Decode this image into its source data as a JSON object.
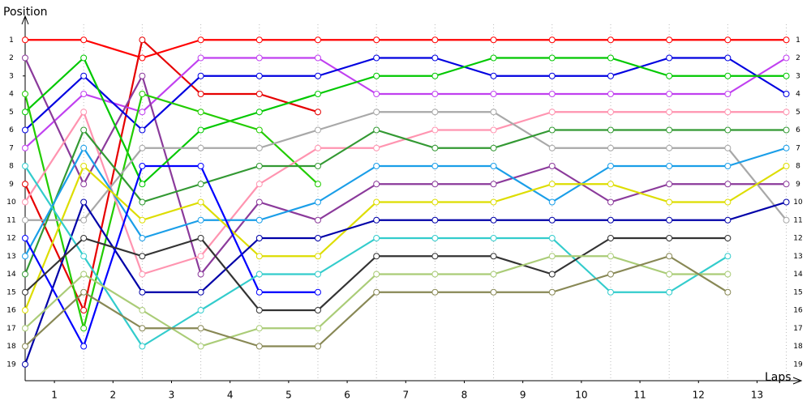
{
  "chart_data": {
    "type": "line",
    "ylabel": "Position",
    "xlabel": "Laps",
    "x": [
      0,
      1,
      2,
      3,
      4,
      5,
      6,
      7,
      8,
      9,
      10,
      11,
      12,
      13
    ],
    "xlim": [
      0,
      13.2
    ],
    "xticks": [
      {
        "value": 0.5,
        "label": "1"
      },
      {
        "value": 1.5,
        "label": "2"
      },
      {
        "value": 2.5,
        "label": "3"
      },
      {
        "value": 3.5,
        "label": "4"
      },
      {
        "value": 4.5,
        "label": "5"
      },
      {
        "value": 5.5,
        "label": "6"
      },
      {
        "value": 6.5,
        "label": "7"
      },
      {
        "value": 7.5,
        "label": "8"
      },
      {
        "value": 8.5,
        "label": "9"
      },
      {
        "value": 9.5,
        "label": "10"
      },
      {
        "value": 10.5,
        "label": "11"
      },
      {
        "value": 11.5,
        "label": "12"
      },
      {
        "value": 12.5,
        "label": "13"
      }
    ],
    "ylim": [
      20,
      0
    ],
    "yticks": [
      1,
      2,
      3,
      4,
      5,
      6,
      7,
      8,
      9,
      10,
      11,
      12,
      13,
      14,
      15,
      16,
      17,
      18,
      19
    ],
    "grid": true,
    "series": [
      {
        "color": "#ff0000",
        "values": [
          1,
          1,
          2,
          1,
          1,
          1,
          1,
          1,
          1,
          1,
          1,
          1,
          1,
          1
        ]
      },
      {
        "color": "#e60000",
        "values": [
          9,
          16,
          1,
          4,
          4,
          5,
          null,
          null,
          null,
          null,
          null,
          null,
          null,
          null
        ]
      },
      {
        "color": "#c040f0",
        "values": [
          7,
          4,
          5,
          2,
          2,
          2,
          4,
          4,
          4,
          4,
          4,
          4,
          4,
          2
        ]
      },
      {
        "color": "#8b3a9b",
        "values": [
          2,
          9,
          3,
          14,
          10,
          11,
          9,
          9,
          9,
          8,
          10,
          9,
          9,
          9
        ]
      },
      {
        "color": "#0000e0",
        "values": [
          6,
          3,
          6,
          3,
          3,
          3,
          2,
          2,
          3,
          3,
          3,
          2,
          2,
          4
        ]
      },
      {
        "color": "#00c800",
        "values": [
          5,
          2,
          9,
          6,
          5,
          4,
          3,
          3,
          2,
          2,
          2,
          3,
          3,
          3
        ]
      },
      {
        "color": "#22cc00",
        "values": [
          4,
          17,
          4,
          5,
          6,
          9,
          null,
          null,
          null,
          null,
          null,
          null,
          null,
          null
        ]
      },
      {
        "color": "#ff94b0",
        "values": [
          10,
          5,
          14,
          13,
          9,
          7,
          7,
          6,
          6,
          5,
          5,
          5,
          5,
          5
        ]
      },
      {
        "color": "#a8a8a8",
        "values": [
          11,
          11,
          7,
          7,
          7,
          6,
          5,
          5,
          5,
          7,
          7,
          7,
          7,
          11
        ]
      },
      {
        "color": "#339933",
        "values": [
          14,
          6,
          10,
          9,
          8,
          8,
          6,
          7,
          7,
          6,
          6,
          6,
          6,
          6
        ]
      },
      {
        "color": "#1a9ee8",
        "values": [
          13,
          7,
          12,
          11,
          11,
          10,
          8,
          8,
          8,
          10,
          8,
          8,
          8,
          7
        ]
      },
      {
        "color": "#dddd00",
        "values": [
          16,
          8,
          11,
          10,
          13,
          13,
          10,
          10,
          10,
          9,
          9,
          10,
          10,
          8
        ]
      },
      {
        "color": "#0000a8",
        "values": [
          19,
          10,
          15,
          15,
          12,
          12,
          11,
          11,
          11,
          11,
          11,
          11,
          11,
          10
        ]
      },
      {
        "color": "#0000ff",
        "values": [
          12,
          18,
          8,
          8,
          15,
          15,
          null,
          null,
          null,
          null,
          null,
          null,
          null,
          null
        ]
      },
      {
        "color": "#33cccc",
        "values": [
          8,
          13,
          18,
          16,
          14,
          14,
          12,
          12,
          12,
          12,
          15,
          15,
          13,
          null
        ]
      },
      {
        "color": "#333333",
        "values": [
          15,
          12,
          13,
          12,
          16,
          16,
          13,
          13,
          13,
          14,
          12,
          12,
          12,
          null
        ]
      },
      {
        "color": "#aacc77",
        "values": [
          17,
          14,
          16,
          18,
          17,
          17,
          14,
          14,
          14,
          13,
          13,
          14,
          14,
          null
        ]
      },
      {
        "color": "#888855",
        "values": [
          18,
          15,
          17,
          17,
          18,
          18,
          15,
          15,
          15,
          15,
          14,
          13,
          15,
          null
        ]
      }
    ]
  }
}
